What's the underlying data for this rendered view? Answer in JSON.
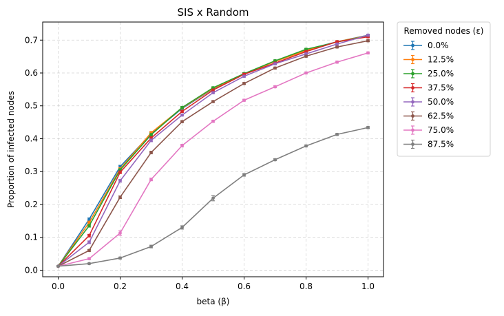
{
  "chart_data": {
    "type": "line",
    "title": "SIS x Random",
    "xlabel": "beta (β)",
    "ylabel": "Proportion of infected nodes",
    "xlim": [
      -0.05,
      1.05
    ],
    "ylim": [
      -0.02,
      0.755
    ],
    "x_ticks": [
      0.0,
      0.2,
      0.4,
      0.6,
      0.8,
      1.0
    ],
    "x_tick_labels": [
      "0.0",
      "0.2",
      "0.4",
      "0.6",
      "0.8",
      "1.0"
    ],
    "y_ticks": [
      0.0,
      0.1,
      0.2,
      0.3,
      0.4,
      0.5,
      0.6,
      0.7
    ],
    "y_tick_labels": [
      "0.0",
      "0.1",
      "0.2",
      "0.3",
      "0.4",
      "0.5",
      "0.6",
      "0.7"
    ],
    "grid": true,
    "error_bars": true,
    "legend": {
      "title": "Removed nodes (ε)",
      "placement": "outside-right-top"
    },
    "x": [
      0.0,
      0.1,
      0.2,
      0.3,
      0.4,
      0.5,
      0.6,
      0.7,
      0.8,
      0.9,
      1.0
    ],
    "series": [
      {
        "name": "0.0%",
        "color": "#1f77b4",
        "values": [
          0.012,
          0.155,
          0.315,
          0.415,
          0.492,
          0.552,
          0.596,
          0.636,
          0.671,
          0.695,
          0.715
        ],
        "errors": [
          0.002,
          0.004,
          0.004,
          0.004,
          0.003,
          0.003,
          0.003,
          0.003,
          0.003,
          0.003,
          0.003
        ]
      },
      {
        "name": "12.5%",
        "color": "#ff7f0e",
        "values": [
          0.012,
          0.145,
          0.308,
          0.418,
          0.494,
          0.553,
          0.597,
          0.635,
          0.668,
          0.695,
          0.714
        ],
        "errors": [
          0.002,
          0.004,
          0.004,
          0.004,
          0.003,
          0.003,
          0.003,
          0.003,
          0.003,
          0.003,
          0.003
        ]
      },
      {
        "name": "25.0%",
        "color": "#2ca02c",
        "values": [
          0.012,
          0.135,
          0.305,
          0.412,
          0.495,
          0.555,
          0.598,
          0.637,
          0.672,
          0.694,
          0.713
        ],
        "errors": [
          0.002,
          0.004,
          0.004,
          0.004,
          0.003,
          0.003,
          0.003,
          0.003,
          0.003,
          0.003,
          0.003
        ]
      },
      {
        "name": "37.5%",
        "color": "#d62728",
        "values": [
          0.012,
          0.105,
          0.298,
          0.402,
          0.483,
          0.548,
          0.596,
          0.63,
          0.665,
          0.695,
          0.71
        ],
        "errors": [
          0.002,
          0.004,
          0.004,
          0.004,
          0.003,
          0.003,
          0.003,
          0.003,
          0.003,
          0.003,
          0.003
        ]
      },
      {
        "name": "50.0%",
        "color": "#9467bd",
        "values": [
          0.012,
          0.085,
          0.272,
          0.395,
          0.472,
          0.54,
          0.59,
          0.628,
          0.658,
          0.688,
          0.715
        ],
        "errors": [
          0.002,
          0.004,
          0.004,
          0.004,
          0.003,
          0.003,
          0.003,
          0.003,
          0.003,
          0.003,
          0.003
        ]
      },
      {
        "name": "62.5%",
        "color": "#8c564b",
        "values": [
          0.012,
          0.06,
          0.222,
          0.358,
          0.452,
          0.513,
          0.568,
          0.615,
          0.651,
          0.679,
          0.698
        ],
        "errors": [
          0.002,
          0.003,
          0.004,
          0.004,
          0.003,
          0.003,
          0.003,
          0.003,
          0.003,
          0.003,
          0.003
        ]
      },
      {
        "name": "75.0%",
        "color": "#e377c2",
        "values": [
          0.012,
          0.035,
          0.113,
          0.276,
          0.379,
          0.453,
          0.517,
          0.558,
          0.6,
          0.633,
          0.661
        ],
        "errors": [
          0.002,
          0.003,
          0.007,
          0.004,
          0.004,
          0.003,
          0.003,
          0.003,
          0.003,
          0.003,
          0.003
        ]
      },
      {
        "name": "87.5%",
        "color": "#7f7f7f",
        "values": [
          0.012,
          0.02,
          0.037,
          0.072,
          0.13,
          0.219,
          0.29,
          0.336,
          0.378,
          0.413,
          0.434
        ],
        "errors": [
          0.002,
          0.002,
          0.003,
          0.004,
          0.005,
          0.008,
          0.004,
          0.003,
          0.003,
          0.003,
          0.003
        ]
      }
    ]
  }
}
